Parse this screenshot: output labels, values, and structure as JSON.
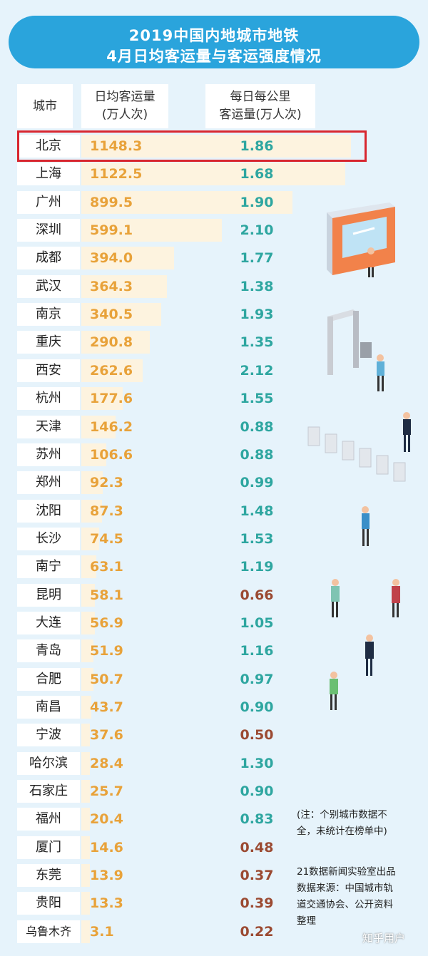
{
  "chart_data": {
    "type": "table",
    "title": [
      "2019中国内地城市地铁",
      "4月日均客运量与客运强度情况"
    ],
    "columns": [
      "城市",
      "日均客运量\n(万人次)",
      "每日每公里\n客运量(万人次)"
    ],
    "header_lines": {
      "city": "城市",
      "a": [
        "日均客运量",
        "(万人次)"
      ],
      "b": [
        "每日每公里",
        "客运量(万人次)"
      ]
    },
    "rows": [
      {
        "city": "北京",
        "passengers": 1148.3,
        "intensity": "1.86"
      },
      {
        "city": "上海",
        "passengers": 1122.5,
        "intensity": "1.68"
      },
      {
        "city": "广州",
        "passengers": 899.5,
        "intensity": "1.90"
      },
      {
        "city": "深圳",
        "passengers": 599.1,
        "intensity": "2.10"
      },
      {
        "city": "成都",
        "passengers": 394.0,
        "intensity": "1.77"
      },
      {
        "city": "武汉",
        "passengers": 364.3,
        "intensity": "1.38"
      },
      {
        "city": "南京",
        "passengers": 340.5,
        "intensity": "1.93"
      },
      {
        "city": "重庆",
        "passengers": 290.8,
        "intensity": "1.35"
      },
      {
        "city": "西安",
        "passengers": 262.6,
        "intensity": "2.12"
      },
      {
        "city": "杭州",
        "passengers": 177.6,
        "intensity": "1.55"
      },
      {
        "city": "天津",
        "passengers": 146.2,
        "intensity": "0.88"
      },
      {
        "city": "苏州",
        "passengers": 106.6,
        "intensity": "0.88"
      },
      {
        "city": "郑州",
        "passengers": 92.3,
        "intensity": "0.99"
      },
      {
        "city": "沈阳",
        "passengers": 87.3,
        "intensity": "1.48"
      },
      {
        "city": "长沙",
        "passengers": 74.5,
        "intensity": "1.53"
      },
      {
        "city": "南宁",
        "passengers": 63.1,
        "intensity": "1.19"
      },
      {
        "city": "昆明",
        "passengers": 58.1,
        "intensity": "0.66"
      },
      {
        "city": "大连",
        "passengers": 56.9,
        "intensity": "1.05"
      },
      {
        "city": "青岛",
        "passengers": 51.9,
        "intensity": "1.16"
      },
      {
        "city": "合肥",
        "passengers": 50.7,
        "intensity": "0.97"
      },
      {
        "city": "南昌",
        "passengers": 43.7,
        "intensity": "0.90"
      },
      {
        "city": "宁波",
        "passengers": 37.6,
        "intensity": "0.50"
      },
      {
        "city": "哈尔滨",
        "passengers": 28.4,
        "intensity": "1.30"
      },
      {
        "city": "石家庄",
        "passengers": 25.7,
        "intensity": "0.90"
      },
      {
        "city": "福州",
        "passengers": 20.4,
        "intensity": "0.83"
      },
      {
        "city": "厦门",
        "passengers": 14.6,
        "intensity": "0.48"
      },
      {
        "city": "东莞",
        "passengers": 13.9,
        "intensity": "0.37"
      },
      {
        "city": "贵阳",
        "passengers": 13.3,
        "intensity": "0.39"
      },
      {
        "city": "乌鲁木齐",
        "passengers": 3.1,
        "intensity": "0.22"
      }
    ],
    "highlighted_row": "北京",
    "colors": {
      "passengers": "#e8a23a",
      "intensity_high": "#2ea6a0",
      "intensity_low": "#9b4a32",
      "bar": "#fdf3df",
      "banner": "#2aa4dc",
      "highlight_border": "#d8262f"
    }
  },
  "notes": {
    "note1": [
      "(注：个别城市数据不",
      "全，未统计在榜单中)"
    ],
    "note2": [
      "21数据新闻实验室出品",
      "数据来源：中国城市轨",
      "道交通协会、公开资料",
      "整理"
    ]
  },
  "watermark": "知乎用户"
}
